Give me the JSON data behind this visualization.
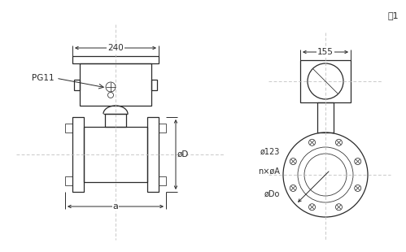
{
  "bg_color": "#ffffff",
  "line_color": "#2a2a2a",
  "dim_color": "#2a2a2a",
  "dot_line_color": "#bbbbbb",
  "fig1_label": "图1",
  "label_240": "240",
  "label_a": "a",
  "label_D": "øD",
  "label_PG11": "PG11",
  "label_155": "155",
  "label_123": "ø123",
  "label_nA": "n×øA",
  "label_Do": "øDo",
  "lw": 0.9,
  "lw_thin": 0.55
}
